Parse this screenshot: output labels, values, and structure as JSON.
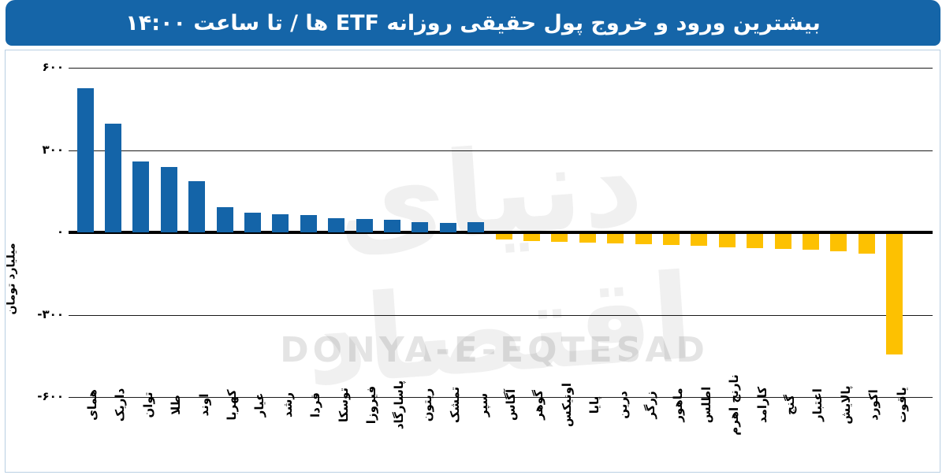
{
  "title": "بیشترین ورود و خروج پول حقیقی روزانه ETF ها / تا ساعت ۱۴:۰۰",
  "y_axis": {
    "label": "میلیارد تومان",
    "ticks": [
      {
        "label": "۶۰۰",
        "value": 600
      },
      {
        "label": "۳۰۰",
        "value": 300
      },
      {
        "label": "۰",
        "value": 0
      },
      {
        "label": "-۳۰۰",
        "value": -300
      },
      {
        "label": "-۶۰۰",
        "value": -600
      }
    ]
  },
  "watermark": {
    "fa": "دنیای اقتصاد",
    "en": "DONYA-E-EQTESAD"
  },
  "colors": {
    "inflow_bar": "#1464a8",
    "outflow_bar": "#fdc101",
    "title_bg": "#1565a8",
    "axis_line": "#000000"
  },
  "chart_data": {
    "type": "bar",
    "title": "بیشترین ورود و خروج پول حقیقی روزانه ETF ها / تا ساعت ۱۴:۰۰",
    "ylabel": "میلیارد تومان",
    "unit": "میلیارد تومان",
    "ylim": [
      -600,
      600
    ],
    "grid": true,
    "categories": [
      "همای",
      "داریک",
      "توان",
      "طلا",
      "اوند",
      "کهربا",
      "عیار",
      "رشد",
      "فردا",
      "توسکا",
      "فیروزا",
      "پاسارگاد",
      "ریتون",
      "تمشک",
      "سپر",
      "آگاس",
      "گوهر",
      "اونیکس",
      "پایا",
      "درین",
      "زرگر",
      "ماهور",
      "اطلس",
      "نارنج اهرم",
      "کارامد",
      "گنج",
      "اعتبار",
      "پالایش",
      "اکورد",
      "یاقوت"
    ],
    "values": [
      525,
      395,
      257,
      238,
      188,
      91,
      72,
      66,
      62,
      52,
      49,
      47,
      36,
      34,
      38,
      -20,
      -25,
      -28,
      -31,
      -34,
      -37,
      -40,
      -43,
      -48,
      -52,
      -55,
      -58,
      -64,
      -72,
      -440
    ],
    "series_note": "positive = inflow (blue), negative = outflow (yellow)"
  }
}
